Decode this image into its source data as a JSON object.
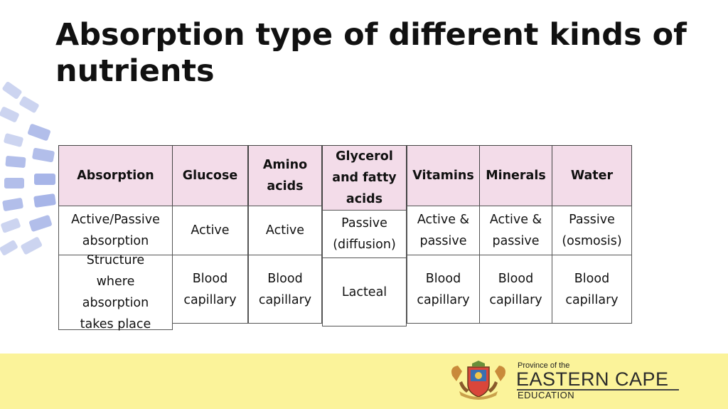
{
  "title": "Absorption type of different kinds of nutrients",
  "table": {
    "columns": [
      {
        "header": "Absorption",
        "row1": "Active/Passive\nabsorption",
        "row2": "Structure\nwhere\nabsorption\ntakes place"
      },
      {
        "header": "Glucose",
        "row1": "Active",
        "row2": "Blood\ncapillary"
      },
      {
        "header": "Amino\nacids",
        "row1": "Active",
        "row2": "Blood\ncapillary"
      },
      {
        "header": "Glycerol\nand fatty\nacids",
        "row1": "Passive\n(diffusion)",
        "row2": "Lacteal"
      },
      {
        "header": "Vitamins",
        "row1": "Active &\npassive",
        "row2": "Blood\ncapillary"
      },
      {
        "header": "Minerals",
        "row1": "Active &\npassive",
        "row2": "Blood\ncapillary"
      },
      {
        "header": "Water",
        "row1": "Passive\n(osmosis)",
        "row2": "Blood\ncapillary"
      }
    ]
  },
  "footer": {
    "logo_line1": "Province of the",
    "logo_line2": "EASTERN CAPE",
    "logo_line3": "EDUCATION"
  },
  "colors": {
    "header_fill": "#f3dce9",
    "footer_band": "#fbf39a",
    "decoration": "#b9c4ea"
  }
}
